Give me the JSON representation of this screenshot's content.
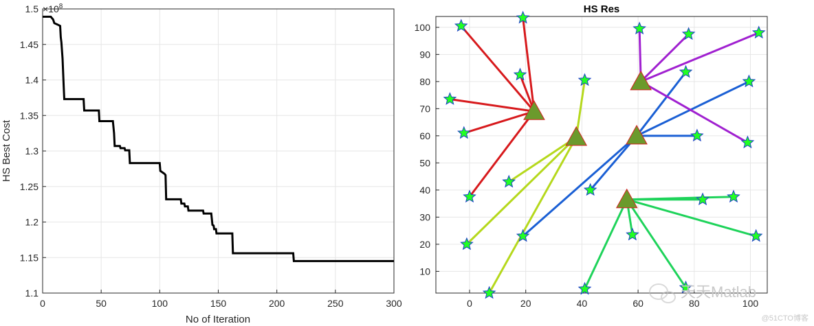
{
  "chart_data": [
    {
      "type": "line",
      "title": "",
      "xlabel": "No of Iteration",
      "ylabel": "HS Best Cost",
      "exponent_label": "×10^8",
      "exponent_base": "×10",
      "exponent_power": "8",
      "xlim": [
        0,
        300
      ],
      "ylim": [
        1.1,
        1.5
      ],
      "xticks": [
        0,
        50,
        100,
        150,
        200,
        250,
        300
      ],
      "yticks": [
        1.1,
        1.15,
        1.2,
        1.25,
        1.3,
        1.35,
        1.4,
        1.45,
        1.5
      ],
      "grid": true,
      "line_color": "#000000",
      "series": [
        {
          "x": [
            0,
            7,
            9,
            10,
            14,
            15,
            15.5,
            16,
            17,
            18,
            18.5,
            35,
            35.5,
            48,
            48.5,
            60,
            61,
            61.5,
            66,
            66.5,
            70,
            70.5,
            74,
            74.5,
            100,
            100.5,
            104,
            105,
            105.5,
            118,
            118.5,
            121,
            121.5,
            124,
            124.5,
            137,
            137.5,
            144,
            145,
            146,
            146.5,
            148,
            148.5,
            162,
            162.5,
            214,
            214.5,
            300
          ],
          "y": [
            1.489,
            1.489,
            1.485,
            1.48,
            1.477,
            1.476,
            1.46,
            1.453,
            1.43,
            1.39,
            1.373,
            1.373,
            1.357,
            1.357,
            1.342,
            1.342,
            1.325,
            1.307,
            1.307,
            1.304,
            1.304,
            1.301,
            1.301,
            1.283,
            1.283,
            1.272,
            1.268,
            1.266,
            1.232,
            1.232,
            1.226,
            1.226,
            1.222,
            1.222,
            1.216,
            1.216,
            1.212,
            1.212,
            1.196,
            1.195,
            1.19,
            1.19,
            1.184,
            1.184,
            1.156,
            1.156,
            1.145,
            1.145
          ]
        }
      ]
    },
    {
      "type": "scatter",
      "title": "HS Res",
      "xlabel": "",
      "ylabel": "",
      "xlim": [
        -12,
        106
      ],
      "ylim": [
        2,
        104
      ],
      "xticks": [
        0,
        20,
        40,
        60,
        80,
        100
      ],
      "yticks": [
        10,
        20,
        30,
        40,
        50,
        60,
        70,
        80,
        90,
        100
      ],
      "grid": true,
      "clusters": [
        {
          "color": "#d7191c",
          "center": [
            23,
            69
          ],
          "points": [
            [
              -3,
              100.5
            ],
            [
              19,
              103.5
            ],
            [
              18,
              82.5
            ],
            [
              -7,
              73.5
            ],
            [
              -2,
              61
            ],
            [
              0,
              37.5
            ]
          ]
        },
        {
          "color": "#b5d81c",
          "center": [
            38,
            59.5
          ],
          "points": [
            [
              41,
              80.5
            ],
            [
              14,
              43
            ],
            [
              -1,
              20
            ],
            [
              7,
              2
            ]
          ]
        },
        {
          "color": "#1a5fd4",
          "center": [
            59.5,
            60
          ],
          "points": [
            [
              77,
              83.5
            ],
            [
              99.5,
              80
            ],
            [
              81,
              60
            ],
            [
              43,
              40
            ],
            [
              19,
              23
            ]
          ]
        },
        {
          "color": "#a020d0",
          "center": [
            61,
            80
          ],
          "points": [
            [
              60.5,
              99.5
            ],
            [
              78,
              97.5
            ],
            [
              103,
              98
            ],
            [
              99,
              57.5
            ]
          ]
        },
        {
          "color": "#1ed35a",
          "center": [
            56,
            36.5
          ],
          "points": [
            [
              83,
              36.5
            ],
            [
              94,
              37.5
            ],
            [
              102,
              23
            ],
            [
              58,
              23.5
            ],
            [
              41,
              3.5
            ],
            [
              77,
              4
            ]
          ]
        }
      ],
      "marker_fill": "#22ff22",
      "marker_edge": "#1a3fc8",
      "center_fill": "#6b9a2c",
      "center_edge": "#d42020"
    }
  ],
  "watermark": {
    "main": "天天Matlab",
    "credit": "@51CTO博客"
  }
}
